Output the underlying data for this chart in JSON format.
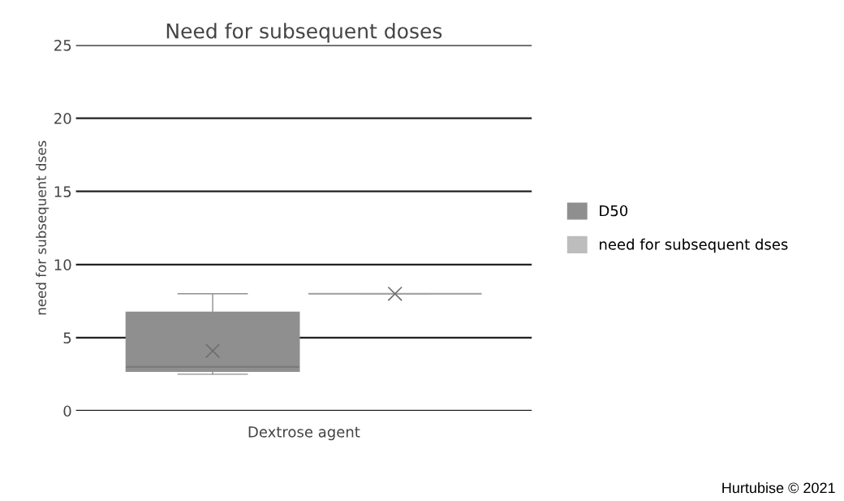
{
  "chart_data": {
    "type": "box",
    "title": "Need for subsequent doses",
    "xlabel": "Dextrose agent",
    "ylabel": "need for subsequent dses",
    "categories": [
      null
    ],
    "series": [
      {
        "name": "D50",
        "color": "#8f8f8f",
        "boxes": [
          {
            "low": 2.5,
            "q1": 2.7,
            "median": 3,
            "q3": 6.75,
            "high": 8,
            "mean": 4.1
          }
        ]
      },
      {
        "name": "need for subsequent dses",
        "color": "#bdbdbd",
        "boxes": [
          {
            "low": 8,
            "q1": 8,
            "median": 8,
            "q3": 8,
            "high": 8,
            "mean": 8
          }
        ]
      }
    ],
    "ylim": [
      0,
      25
    ],
    "yticks": [
      0,
      5,
      10,
      15,
      20,
      25
    ],
    "grid": "y",
    "legend": "right",
    "annotations": [
      "Hurtubise © 2021"
    ]
  }
}
